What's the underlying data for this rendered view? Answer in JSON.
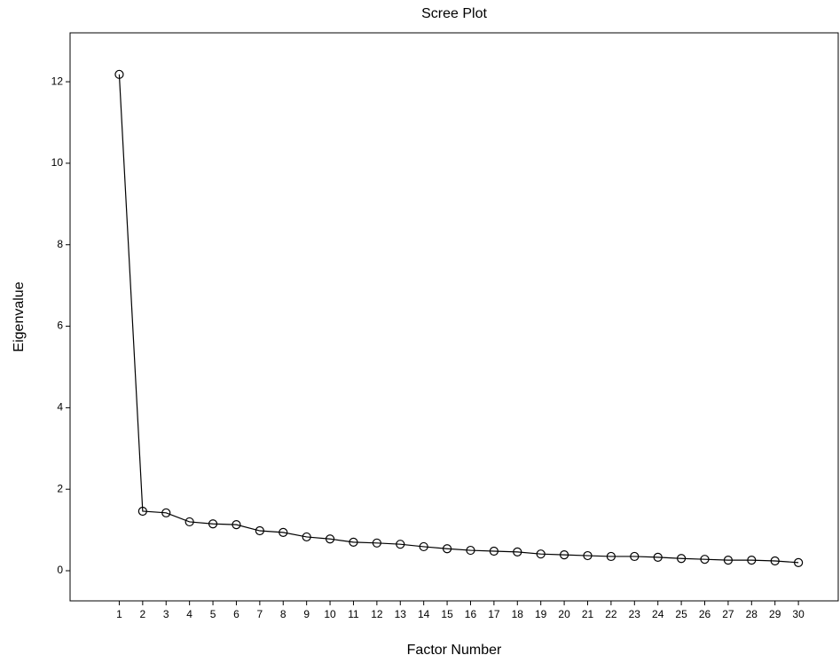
{
  "chart_data": {
    "type": "line",
    "title": "Scree Plot",
    "x_label": "Factor Number",
    "y_label": "Eigenvalue",
    "x": [
      1,
      2,
      3,
      4,
      5,
      6,
      7,
      8,
      9,
      10,
      11,
      12,
      13,
      14,
      15,
      16,
      17,
      18,
      19,
      20,
      21,
      22,
      23,
      24,
      25,
      26,
      27,
      28,
      29,
      30
    ],
    "series": [
      {
        "name": "Eigenvalue",
        "color": "#000000",
        "values": [
          12.18,
          1.46,
          1.42,
          1.2,
          1.15,
          1.13,
          0.98,
          0.94,
          0.83,
          0.78,
          0.7,
          0.68,
          0.65,
          0.59,
          0.54,
          0.5,
          0.48,
          0.46,
          0.41,
          0.39,
          0.37,
          0.35,
          0.35,
          0.33,
          0.3,
          0.28,
          0.26,
          0.26,
          0.24,
          0.2
        ]
      }
    ],
    "xlim": [
      -1.1,
      31.7
    ],
    "xticks": [
      1,
      2,
      3,
      4,
      5,
      6,
      7,
      8,
      9,
      10,
      11,
      12,
      13,
      14,
      15,
      16,
      17,
      18,
      19,
      20,
      21,
      22,
      23,
      24,
      25,
      26,
      27,
      28,
      29,
      30
    ],
    "ylim": [
      -0.74,
      13.2
    ],
    "yticks": [
      0,
      2,
      4,
      6,
      8,
      10,
      12
    ],
    "grid": false
  }
}
